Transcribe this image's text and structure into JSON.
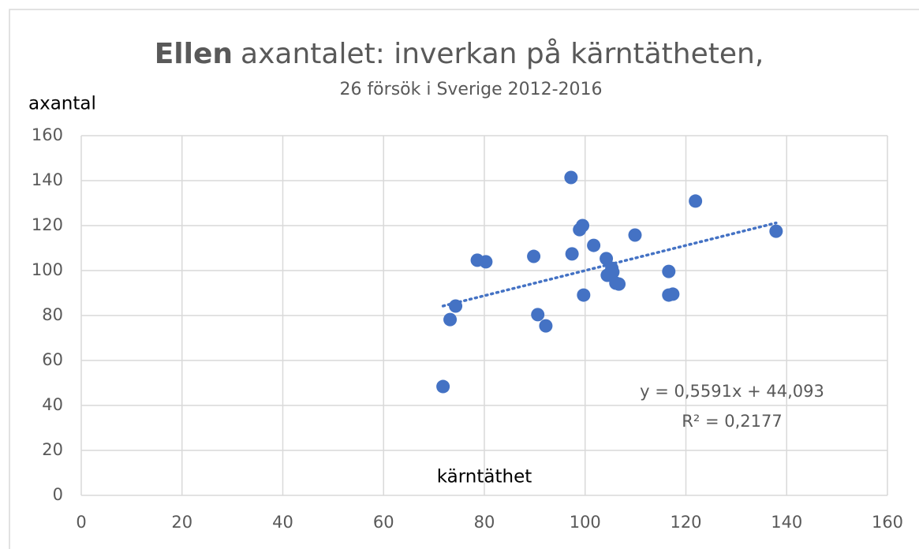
{
  "chart_data": {
    "type": "scatter",
    "title_bold": "Ellen",
    "title": "axantalet: inverkan på kärntätheten,",
    "subtitle": "26 försök i Sverige 2012-2016",
    "y_label": "axantal",
    "x_label": "kärntäthet",
    "color": "#4472c4",
    "grid": true,
    "xlim": [
      0,
      160
    ],
    "ylim": [
      0,
      160
    ],
    "xticks": [
      0,
      20,
      40,
      60,
      80,
      100,
      120,
      140,
      160
    ],
    "yticks": [
      0,
      20,
      40,
      60,
      80,
      100,
      120,
      140,
      160
    ],
    "x": [
      71.8,
      73.2,
      74.3,
      78.6,
      80.3,
      89.8,
      90.6,
      92.2,
      97.2,
      97.4,
      98.9,
      99.5,
      99.7,
      101.7,
      104.2,
      104.4,
      105.3,
      105.5,
      106.1,
      106.7,
      109.9,
      116.6,
      116.6,
      117.4,
      121.9,
      137.9
    ],
    "values": [
      48.4,
      78.2,
      84.2,
      104.6,
      103.9,
      106.3,
      80.4,
      75.4,
      141.4,
      107.4,
      118.2,
      120,
      89.1,
      111.2,
      105.3,
      97.9,
      101,
      99.3,
      94.4,
      94,
      115.8,
      99.6,
      89.1,
      89.5,
      130.9,
      117.5
    ],
    "trendline": {
      "slope": 0.5591,
      "intercept": 44.093,
      "equation": "y = 0,5591x + 44,093",
      "r2": "R² = 0,2177"
    }
  }
}
